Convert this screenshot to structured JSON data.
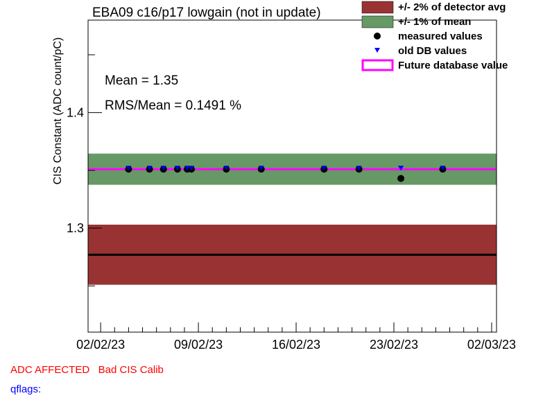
{
  "chart_data": {
    "type": "scatter",
    "title": "EBA09 c16/p17 lowgain (not in update)",
    "ylabel": "CIS Constant (ADC count/pC)",
    "xlabel": "",
    "xlim": [
      "2023-02-02",
      "2023-03-02"
    ],
    "ylim": [
      1.21,
      1.48
    ],
    "x_tick_labels": [
      "02/02/23",
      "09/02/23",
      "16/02/23",
      "23/02/23",
      "02/03/23"
    ],
    "y_tick_labels": [
      "1.3",
      "1.4"
    ],
    "stats": {
      "mean": "Mean = 1.35",
      "rms": "RMS/Mean = 0.1491 %"
    },
    "detector_avg": 1.277,
    "band_2pct_detector_avg": [
      1.251,
      1.303
    ],
    "band_1pct_mean": [
      1.3375,
      1.3645
    ],
    "future_db_value": 1.351,
    "legend": {
      "placement": "top-right",
      "entries": [
        {
          "label": "+/- 2% of detector avg",
          "symbol": "box",
          "color": "#993333"
        },
        {
          "label": "+/- 1% of mean",
          "symbol": "box",
          "color": "#669966"
        },
        {
          "label": "measured values",
          "symbol": "circle",
          "color": "#000000"
        },
        {
          "label": "old DB values",
          "symbol": "triangle-down",
          "color": "#0000ff"
        },
        {
          "label": "Future database value",
          "symbol": "line",
          "color": "#ff00ff"
        }
      ]
    },
    "series": [
      {
        "name": "measured values",
        "points": [
          [
            "2023-02-04",
            1.351
          ],
          [
            "2023-02-05.5",
            1.351
          ],
          [
            "2023-02-06.5",
            1.351
          ],
          [
            "2023-02-07.5",
            1.351
          ],
          [
            "2023-02-08.2",
            1.351
          ],
          [
            "2023-02-08.5",
            1.351
          ],
          [
            "2023-02-11",
            1.351
          ],
          [
            "2023-02-13.5",
            1.351
          ],
          [
            "2023-02-18",
            1.351
          ],
          [
            "2023-02-20.5",
            1.351
          ],
          [
            "2023-02-23.5",
            1.343
          ],
          [
            "2023-02-26.5",
            1.351
          ]
        ]
      },
      {
        "name": "old DB values",
        "points": [
          [
            "2023-02-04",
            1.351
          ],
          [
            "2023-02-05.5",
            1.351
          ],
          [
            "2023-02-06.5",
            1.351
          ],
          [
            "2023-02-07.5",
            1.351
          ],
          [
            "2023-02-08.2",
            1.351
          ],
          [
            "2023-02-08.5",
            1.351
          ],
          [
            "2023-02-11",
            1.351
          ],
          [
            "2023-02-13.5",
            1.351
          ],
          [
            "2023-02-18",
            1.351
          ],
          [
            "2023-02-20.5",
            1.351
          ],
          [
            "2023-02-23.5",
            1.351
          ],
          [
            "2023-02-26.5",
            1.351
          ]
        ]
      }
    ]
  },
  "status": {
    "adc": "ADC AFFECTED   Bad CIS Calib",
    "qflags": "qflags:"
  },
  "colors": {
    "band2": "#993333",
    "band1": "#669966",
    "future": "#ff00ff",
    "marker_old": "#0000ff",
    "marker_meas": "#000000"
  }
}
